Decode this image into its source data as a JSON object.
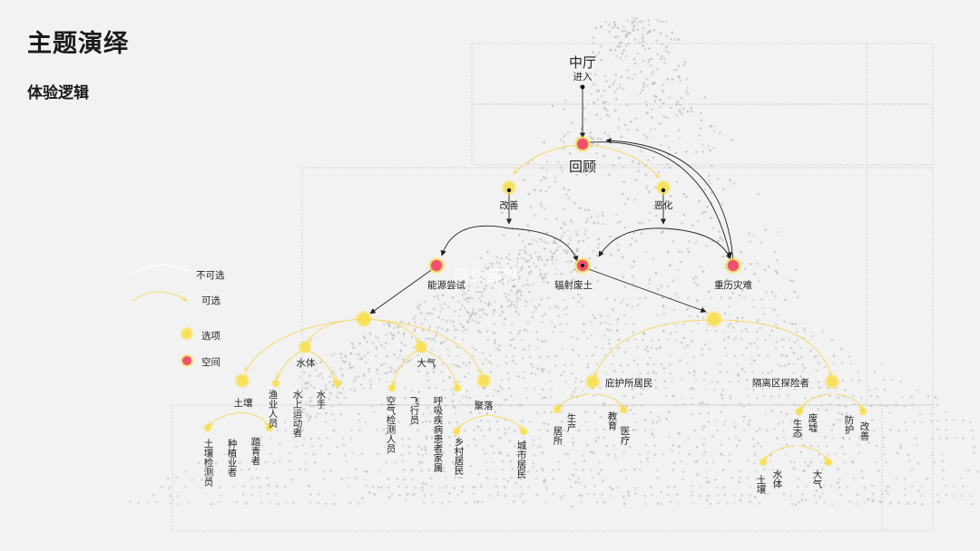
{
  "title": "主题演绎",
  "subtitle": "体验逻辑",
  "watermark": "码头部落",
  "colors": {
    "space_node": "#f0506e",
    "option_node": "#f7e04f",
    "optional_line": "#f5d96b",
    "mandatory_line": "#ffffff",
    "arrow": "#222222",
    "dots": "#bcbcbc",
    "frame": "#b8b8b8"
  },
  "legend": {
    "not_optional": "不可选",
    "optional": "可选",
    "option": "选项",
    "space": "空间"
  },
  "nodes": {
    "hall": "中厅",
    "enter": "进入",
    "review": "回顾",
    "improve": "改善",
    "worsen": "恶化",
    "energy": "能源尝试",
    "radiation": "辐射废土",
    "disaster": "重历灾难"
  },
  "energy_branch": {
    "water": "水体",
    "air": "大气",
    "soil": "土壤",
    "settlement": "聚落",
    "fisher": "渔业人员",
    "water_sport": "水上运动者",
    "sailor": "水手",
    "soil_inspector": "土壤检测员",
    "planter": "种植业者",
    "hiker": "踏青者",
    "air_inspector": "空气检测人员",
    "pilot": "飞行员",
    "patient_family": "呼吸疾病患者家属",
    "rural": "乡村居民",
    "urban": "城市居民"
  },
  "disaster_branch": {
    "shelter": "庇护所居民",
    "quarantine": "隔离区探险者",
    "produce": "生产",
    "residence": "居所",
    "education": "教育",
    "medical": "医疗",
    "ecology": "生态",
    "ruins": "废墟",
    "protection": "防护",
    "improve2": "改善",
    "soil2": "土壤",
    "water2": "水体",
    "air2": "大气"
  }
}
